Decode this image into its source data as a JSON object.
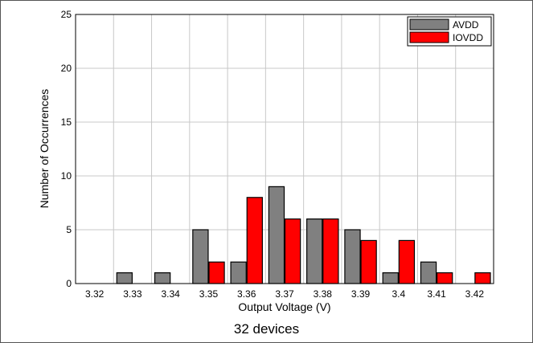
{
  "chart_data": {
    "type": "bar",
    "categories": [
      "3.32",
      "3.33",
      "3.34",
      "3.35",
      "3.36",
      "3.37",
      "3.38",
      "3.39",
      "3.4",
      "3.41",
      "3.42"
    ],
    "x_tick_labels": [
      "3.32",
      "3.33",
      "3.34",
      "3.35",
      "3.36",
      "3.37",
      "3.38",
      "3.39",
      "3.4",
      "3.41",
      "3.42"
    ],
    "series": [
      {
        "name": "AVDD",
        "color": "#808080",
        "values": [
          0,
          1,
          1,
          5,
          2,
          9,
          6,
          5,
          1,
          2,
          0
        ]
      },
      {
        "name": "IOVDD",
        "color": "#ff0000",
        "values": [
          0,
          0,
          0,
          2,
          8,
          6,
          6,
          4,
          4,
          1,
          1
        ]
      }
    ],
    "xlabel": "Output Voltage (V)",
    "ylabel": "Number of Occurrences",
    "ylim": [
      0,
      25
    ],
    "y_ticks": [
      0,
      5,
      10,
      15,
      20,
      25
    ],
    "grid": true,
    "legend_position": "top-right"
  },
  "caption": "32 devices"
}
